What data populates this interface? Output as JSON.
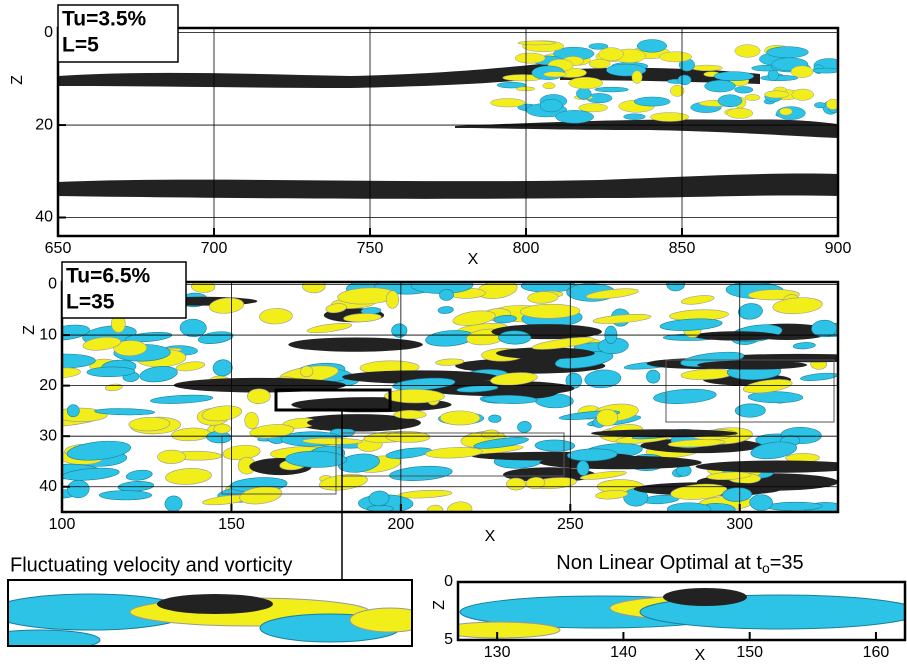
{
  "panels": [
    {
      "label": [
        "Tu=3.5%",
        "L=5"
      ],
      "xlabel": "X",
      "ylabel": "Z",
      "xlim": [
        650,
        900
      ],
      "ylim": [
        -1,
        44
      ],
      "y_reversed": true,
      "xticks": [
        650,
        700,
        750,
        800,
        850,
        900
      ],
      "yticks": [
        0,
        20,
        40
      ],
      "grid": true
    },
    {
      "label": [
        "Tu=6.5%",
        "L=35"
      ],
      "xlabel": "X",
      "ylabel": "Z",
      "xlim": [
        100,
        329
      ],
      "ylim": [
        -0.5,
        45
      ],
      "y_reversed": true,
      "xticks": [
        100,
        150,
        200,
        250,
        300
      ],
      "yticks": [
        0,
        10,
        20,
        30,
        40
      ],
      "grid": true
    },
    {
      "title": [
        "Non Linear Optimal at t",
        "o",
        "=35"
      ],
      "xlabel": "X",
      "ylabel": "Z",
      "xlim": [
        126.9,
        162.3
      ],
      "ylim": [
        0,
        5
      ],
      "y_reversed": true,
      "xticks": [
        130,
        140,
        150,
        160
      ],
      "yticks": [
        0,
        5
      ],
      "grid": false
    }
  ],
  "inset_caption": "Fluctuating velocity and vorticity"
}
